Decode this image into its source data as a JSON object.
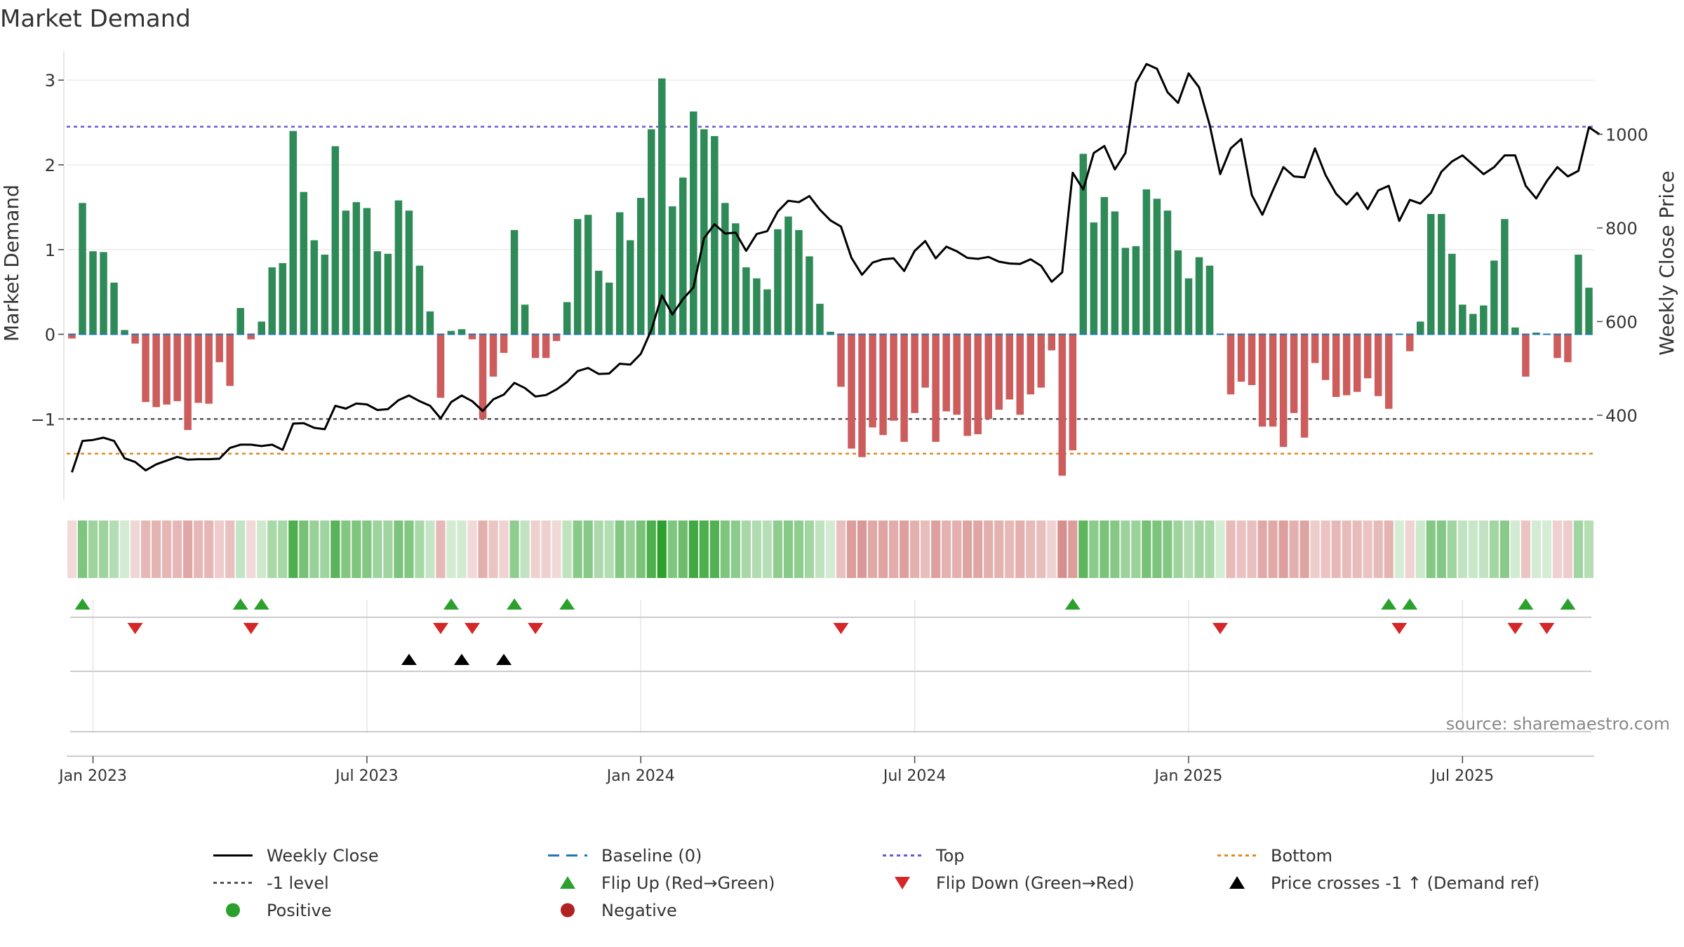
{
  "chart_data": {
    "type": "bar",
    "title": "Market Demand",
    "ylabel": "Market Demand",
    "y2label": "Weekly Close Price",
    "source": "source: sharemaestro.com",
    "ylim": [
      -1.95,
      3.3
    ],
    "y2lim": [
      220,
      1170
    ],
    "yticks": [
      -1,
      0,
      1,
      2,
      3
    ],
    "yticklabels": [
      "−1",
      "0",
      "1",
      "2",
      "3"
    ],
    "y2ticks": [
      400,
      600,
      800,
      1000
    ],
    "xticks": [
      2,
      28,
      54,
      80,
      106,
      132
    ],
    "xticklabels": [
      "Jan 2023",
      "Jul 2023",
      "Jan 2024",
      "Jul 2024",
      "Jan 2025",
      "Jul 2025"
    ],
    "reference_lines": {
      "top": 2.45,
      "bottom": -1.41,
      "minus_one": -1,
      "baseline": 0
    },
    "colors": {
      "positive": "#2e8b57",
      "negative": "#cd5c5c",
      "price": "#000000",
      "top": "#6a5acd",
      "bottom": "#e08a1e",
      "minus_one": "#555555",
      "baseline": "#1f77b4",
      "flip_up": "#2ca02c",
      "flip_down": "#d62728",
      "cross": "#000000"
    },
    "demand": [
      -0.05,
      1.55,
      0.98,
      0.97,
      0.61,
      0.05,
      -0.11,
      -0.8,
      -0.86,
      -0.83,
      -0.79,
      -1.13,
      -0.81,
      -0.82,
      -0.33,
      -0.61,
      0.31,
      -0.06,
      0.15,
      0.79,
      0.84,
      2.4,
      1.68,
      1.11,
      0.94,
      2.22,
      1.46,
      1.56,
      1.49,
      0.98,
      0.95,
      1.58,
      1.46,
      0.81,
      0.27,
      -0.75,
      0.04,
      0.06,
      -0.06,
      -1.0,
      -0.5,
      -0.22,
      1.23,
      0.35,
      -0.28,
      -0.28,
      -0.08,
      0.38,
      1.36,
      1.41,
      0.75,
      0.61,
      1.44,
      1.11,
      1.61,
      2.42,
      3.02,
      1.51,
      1.85,
      2.63,
      2.42,
      2.34,
      1.55,
      1.31,
      0.79,
      0.66,
      0.53,
      1.24,
      1.39,
      1.23,
      0.92,
      0.36,
      0.03,
      -0.62,
      -1.35,
      -1.45,
      -1.1,
      -1.19,
      -1.02,
      -1.27,
      -0.93,
      -0.63,
      -1.27,
      -0.91,
      -0.95,
      -1.2,
      -1.18,
      -1.0,
      -0.89,
      -0.77,
      -0.95,
      -0.71,
      -0.63,
      -0.19,
      -1.67,
      -1.37,
      2.13,
      1.32,
      1.62,
      1.45,
      1.02,
      1.04,
      1.71,
      1.6,
      1.46,
      0.99,
      0.66,
      0.91,
      0.81,
      0.0,
      -0.71,
      -0.56,
      -0.6,
      -1.09,
      -1.09,
      -1.33,
      -0.93,
      -1.22,
      -0.34,
      -0.54,
      -0.74,
      -0.72,
      -0.68,
      -0.52,
      -0.73,
      -0.88,
      0.0,
      -0.2,
      0.15,
      1.42,
      1.42,
      0.95,
      0.35,
      0.24,
      0.34,
      0.87,
      1.36,
      0.08,
      -0.5,
      0.02,
      0.0,
      -0.28,
      -0.33,
      0.94,
      0.55
    ],
    "price": [
      278,
      345,
      347,
      352,
      345,
      308,
      300,
      282,
      295,
      303,
      311,
      305,
      306,
      306,
      307,
      330,
      337,
      337,
      334,
      337,
      326,
      382,
      383,
      373,
      370,
      420,
      414,
      425,
      423,
      411,
      413,
      432,
      442,
      430,
      420,
      393,
      428,
      442,
      430,
      409,
      434,
      444,
      469,
      458,
      440,
      443,
      455,
      471,
      494,
      501,
      488,
      489,
      510,
      508,
      531,
      582,
      656,
      615,
      648,
      673,
      778,
      808,
      788,
      790,
      751,
      787,
      793,
      835,
      858,
      855,
      868,
      839,
      816,
      803,
      736,
      700,
      726,
      733,
      735,
      708,
      751,
      772,
      735,
      760,
      750,
      736,
      734,
      738,
      728,
      724,
      723,
      733,
      719,
      685,
      705,
      918,
      882,
      960,
      975,
      925,
      960,
      1110,
      1150,
      1140,
      1090,
      1067,
      1130,
      1100,
      1020,
      915,
      970,
      990,
      870,
      828,
      880,
      930,
      910,
      908,
      970,
      913,
      873,
      850,
      875,
      840,
      880,
      890,
      815,
      860,
      852,
      875,
      920,
      942,
      955,
      935,
      915,
      930,
      955,
      955,
      890,
      863,
      900,
      930,
      910,
      922,
      1015,
      1000
    ],
    "flip_up": [
      1,
      16,
      18,
      36,
      42,
      47,
      95,
      125,
      127,
      138,
      142
    ],
    "flip_down": [
      6,
      17,
      35,
      38,
      44,
      73,
      109,
      126,
      137,
      140
    ],
    "price_crosses": [
      32,
      37,
      41
    ],
    "legend": [
      {
        "label": "Weekly Close",
        "marker": "solid-line"
      },
      {
        "label": "Baseline (0)",
        "marker": "dashed-line"
      },
      {
        "label": "Top",
        "marker": "dotted-line"
      },
      {
        "label": "Bottom",
        "marker": "dotted-line"
      },
      {
        "label": "-1 level",
        "marker": "dotted-line"
      },
      {
        "label": "Flip Up (Red→Green)",
        "marker": "triangle-up"
      },
      {
        "label": "Flip Down (Green→Red)",
        "marker": "triangle-down"
      },
      {
        "label": "Price crosses -1 ↑ (Demand ref)",
        "marker": "triangle-up"
      },
      {
        "label": "Positive",
        "marker": "circle"
      },
      {
        "label": "Negative",
        "marker": "circle"
      }
    ]
  }
}
